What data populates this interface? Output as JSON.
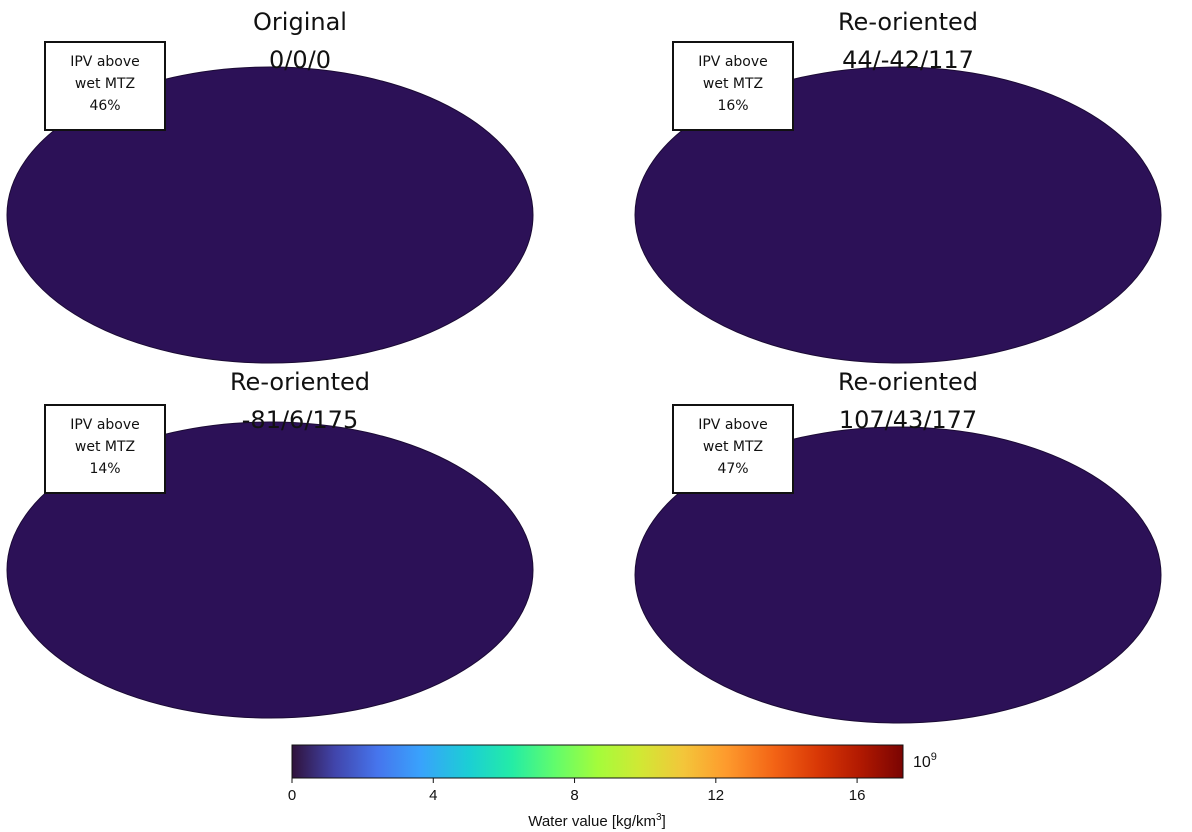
{
  "panels": [
    {
      "title": "Original",
      "subtitle": "0/0/0",
      "box": [
        "IPV above",
        "wet MTZ",
        "46%"
      ]
    },
    {
      "title": "Re-oriented",
      "subtitle": "44/-42/117",
      "box": [
        "IPV above",
        "wet MTZ",
        "16%"
      ]
    },
    {
      "title": "Re-oriented",
      "subtitle": "-81/6/175",
      "box": [
        "IPV above",
        "wet MTZ",
        "14%"
      ]
    },
    {
      "title": "Re-oriented",
      "subtitle": "107/43/177",
      "box": [
        "IPV above",
        "wet MTZ",
        "47%"
      ]
    }
  ],
  "colorbar": {
    "lim": [
      0,
      17.3
    ],
    "ticks": [
      0,
      4,
      8,
      12,
      16
    ],
    "exponent_base": "10",
    "exponent": "9",
    "label": "Water value [kg/km",
    "label_sup": "3",
    "label_end": "]"
  }
}
